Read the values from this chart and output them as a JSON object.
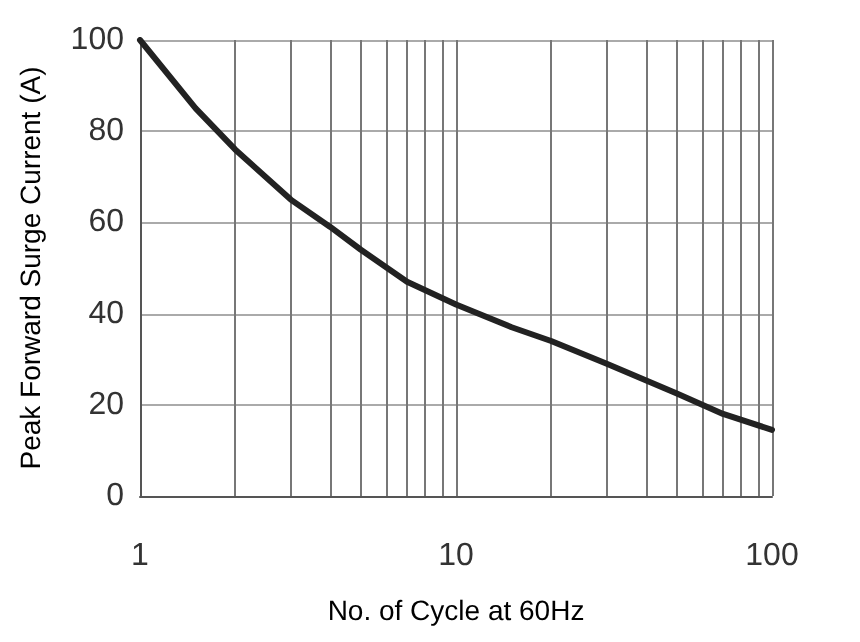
{
  "chart_data": {
    "type": "line",
    "xlabel": "No. of Cycle at 60Hz",
    "ylabel": "Peak Forward Surge Current (A)",
    "log": "x",
    "grid": true,
    "marker": "none",
    "line_style": "solid",
    "x": [
      1,
      1.5,
      2,
      3,
      4,
      5,
      7,
      10,
      15,
      20,
      30,
      50,
      70,
      100
    ],
    "series": [
      {
        "color": "#222222",
        "values": [
          100,
          85,
          76,
          65,
          59,
          54,
          47,
          42,
          37,
          34,
          29,
          22.5,
          18,
          14.5
        ]
      }
    ],
    "xlim": [
      1,
      100
    ],
    "xticks": [
      1,
      {
        "value": 2,
        "label": null
      },
      {
        "value": 3,
        "label": null
      },
      {
        "value": 4,
        "label": null
      },
      {
        "value": 5,
        "label": null
      },
      {
        "value": 6,
        "label": null
      },
      {
        "value": 7,
        "label": null
      },
      {
        "value": 8,
        "label": null
      },
      {
        "value": 9,
        "label": null
      },
      10,
      {
        "value": 20,
        "label": null
      },
      {
        "value": 30,
        "label": null
      },
      {
        "value": 40,
        "label": null
      },
      {
        "value": 50,
        "label": null
      },
      {
        "value": 60,
        "label": null
      },
      {
        "value": 70,
        "label": null
      },
      {
        "value": 80,
        "label": null
      },
      {
        "value": 90,
        "label": null
      },
      100
    ],
    "ylim": [
      0,
      100
    ],
    "yticks": [
      0,
      20,
      40,
      60,
      80,
      100
    ]
  }
}
